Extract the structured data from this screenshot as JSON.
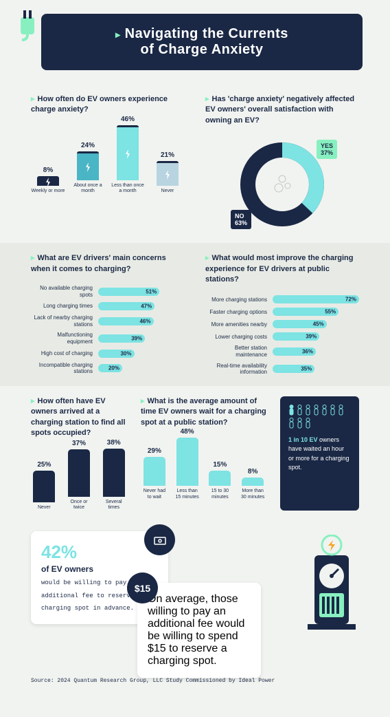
{
  "title_line1": "Navigating the Currents",
  "title_line2": "of Charge Anxiety",
  "colors": {
    "navy": "#1a2845",
    "teal": "#7de3e3",
    "mint": "#88f0c0",
    "bg": "#f1f3f0",
    "bg2": "#e8ebe5"
  },
  "q1": {
    "question": "How often do EV owners experience charge anxiety?",
    "type": "bar",
    "items": [
      {
        "label": "Weekly or more",
        "value": 8,
        "color": "#1a2845"
      },
      {
        "label": "About once a month",
        "value": 24,
        "color": "#4ab5c5"
      },
      {
        "label": "Less than once a month",
        "value": 46,
        "color": "#7de3e3"
      },
      {
        "label": "Never",
        "value": 21,
        "color": "#b8d4e0"
      }
    ],
    "max": 46
  },
  "q2": {
    "question": "Has 'charge anxiety' negatively affected EV owners' overall satisfaction with owning an EV?",
    "type": "donut",
    "yes": 37,
    "no": 63,
    "yes_color": "#7de3e3",
    "no_color": "#1a2845"
  },
  "q3": {
    "question": "What are EV drivers' main concerns when it comes to charging?",
    "items": [
      {
        "label": "No available charging spots",
        "value": 51
      },
      {
        "label": "Long charging times",
        "value": 47
      },
      {
        "label": "Lack of nearby charging stations",
        "value": 46
      },
      {
        "label": "Malfunctioning equipment",
        "value": 39
      },
      {
        "label": "High cost of charging",
        "value": 30
      },
      {
        "label": "Incompatible charging stations",
        "value": 20
      }
    ],
    "max": 72
  },
  "q4": {
    "question": "What would most improve the charging experience for EV drivers at public stations?",
    "items": [
      {
        "label": "More charging stations",
        "value": 72
      },
      {
        "label": "Faster charging options",
        "value": 55
      },
      {
        "label": "More amenities nearby",
        "value": 45
      },
      {
        "label": "Lower charging costs",
        "value": 39
      },
      {
        "label": "Better station maintenance",
        "value": 36
      },
      {
        "label": "Real-time availability information",
        "value": 35
      }
    ],
    "max": 72
  },
  "q5": {
    "question": "How often have EV owners arrived at a charging station to find all spots occupied?",
    "items": [
      {
        "label": "Never",
        "value": 25
      },
      {
        "label": "Once or twice",
        "value": 37
      },
      {
        "label": "Several times",
        "value": 38
      }
    ],
    "max": 38
  },
  "q6": {
    "question": "What is the average amount of time EV owners wait for a charging spot at a public station?",
    "items": [
      {
        "label": "Never had to wait",
        "value": 29
      },
      {
        "label": "Less than 15 minutes",
        "value": 48
      },
      {
        "label": "15 to 30 minutes",
        "value": 15
      },
      {
        "label": "More than 30 minutes",
        "value": 8
      }
    ],
    "max": 48
  },
  "stat_box": {
    "highlight": "1 in 10 EV",
    "text": "owners have waited an hour or more for a charging spot."
  },
  "callout1": {
    "big": "42%",
    "med": "of EV owners",
    "small": "would be willing to pay an additional fee to reserve a charging spot in advance."
  },
  "callout2": {
    "badge": "$15",
    "small": "On average, those willing to pay an additional fee would be willing to spend $15 to reserve a charging spot."
  },
  "source": "Source: 2024 Quantum Research Group, LLC Study Commissioned by Ideal Power"
}
